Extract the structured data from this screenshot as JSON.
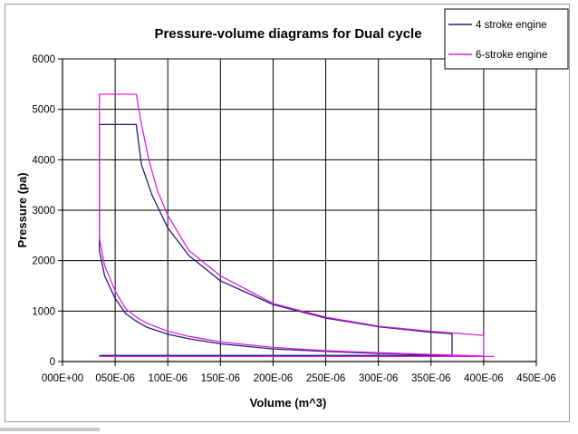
{
  "chart_data": {
    "type": "line",
    "title": "Pressure-volume diagrams for Dual cycle",
    "xlabel": "Volume (m^3)",
    "ylabel": "Pressure (pa)",
    "xlim": [
      0,
      0.00045
    ],
    "ylim": [
      0,
      6000
    ],
    "x_ticks": [
      0,
      5e-05,
      0.0001,
      0.00015,
      0.0002,
      0.00025,
      0.0003,
      0.00035,
      0.0004,
      0.00045
    ],
    "x_tick_labels": [
      "000E+00",
      "050E-06",
      "100E-06",
      "150E-06",
      "200E-06",
      "250E-06",
      "300E-06",
      "350E-06",
      "400E-06",
      "450E-06"
    ],
    "y_ticks": [
      0,
      1000,
      2000,
      3000,
      4000,
      5000,
      6000
    ],
    "y_tick_labels": [
      "0",
      "1000",
      "2000",
      "3000",
      "4000",
      "5000",
      "6000"
    ],
    "grid": true,
    "legend_position": "top-right",
    "series": [
      {
        "name": "4 stroke engine",
        "color": "#1f1f7a",
        "points": [
          [
            3.5e-05,
            120
          ],
          [
            0.00037,
            120
          ],
          [
            0.00037,
            550
          ],
          [
            0.00035,
            580
          ],
          [
            0.0003,
            690
          ],
          [
            0.00025,
            860
          ],
          [
            0.0002,
            1130
          ],
          [
            0.00015,
            1600
          ],
          [
            0.00012,
            2100
          ],
          [
            0.0001,
            2650
          ],
          [
            8.5e-05,
            3300
          ],
          [
            7.5e-05,
            3900
          ],
          [
            7e-05,
            4700
          ],
          [
            3.5e-05,
            4700
          ],
          [
            3.5e-05,
            2200
          ],
          [
            4e-05,
            1700
          ],
          [
            5e-05,
            1250
          ],
          [
            6e-05,
            950
          ],
          [
            7e-05,
            800
          ],
          [
            8e-05,
            680
          ],
          [
            0.0001,
            540
          ],
          [
            0.00012,
            450
          ],
          [
            0.00015,
            350
          ],
          [
            0.0002,
            250
          ],
          [
            0.00025,
            200
          ],
          [
            0.0003,
            160
          ],
          [
            0.00035,
            135
          ],
          [
            0.00037,
            120
          ]
        ]
      },
      {
        "name": "6-stroke engine",
        "color": "#e020e0",
        "points": [
          [
            3.5e-05,
            100
          ],
          [
            0.00041,
            100
          ],
          [
            0.0004,
            100
          ],
          [
            0.0004,
            520
          ],
          [
            0.00035,
            600
          ],
          [
            0.0003,
            700
          ],
          [
            0.00025,
            880
          ],
          [
            0.0002,
            1150
          ],
          [
            0.00015,
            1700
          ],
          [
            0.00012,
            2200
          ],
          [
            0.0001,
            2900
          ],
          [
            9e-05,
            3400
          ],
          [
            8.2e-05,
            4000
          ],
          [
            7.5e-05,
            4700
          ],
          [
            7e-05,
            5300
          ],
          [
            3.5e-05,
            5300
          ],
          [
            3.5e-05,
            2450
          ],
          [
            4e-05,
            1900
          ],
          [
            5e-05,
            1400
          ],
          [
            6e-05,
            1050
          ],
          [
            7e-05,
            880
          ],
          [
            8e-05,
            760
          ],
          [
            0.0001,
            600
          ],
          [
            0.00012,
            500
          ],
          [
            0.00015,
            390
          ],
          [
            0.0002,
            280
          ],
          [
            0.00025,
            215
          ],
          [
            0.0003,
            175
          ],
          [
            0.00035,
            140
          ],
          [
            0.0004,
            110
          ]
        ]
      }
    ]
  }
}
